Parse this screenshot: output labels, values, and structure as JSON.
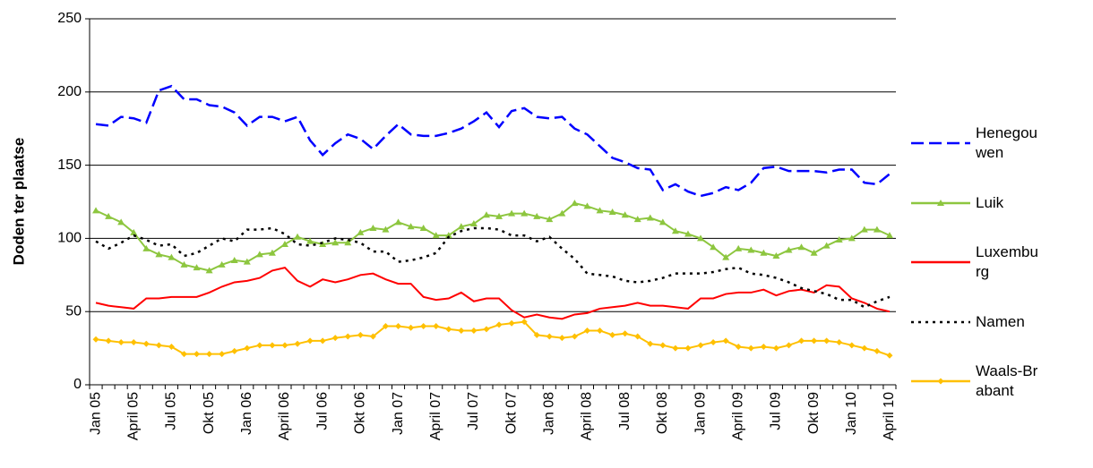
{
  "chart_data": {
    "type": "line",
    "y_label": "Doden ter plaatse",
    "categories": [
      "Jan 05",
      null,
      null,
      "April 05",
      null,
      null,
      "Jul 05",
      null,
      null,
      "Okt 05",
      null,
      null,
      "Jan 06",
      null,
      null,
      "April 06",
      null,
      null,
      "Jul 06",
      null,
      null,
      "Okt 06",
      null,
      null,
      "Jan 07",
      null,
      null,
      "April 07",
      null,
      null,
      "Jul 07",
      null,
      null,
      "Okt 07",
      null,
      null,
      "Jan 08",
      null,
      null,
      "April 08",
      null,
      null,
      "Jul 08",
      null,
      null,
      "Okt 08",
      null,
      null,
      "Jan 09",
      null,
      null,
      "April 09",
      null,
      null,
      "Jul 09",
      null,
      null,
      "Okt 09",
      null,
      null,
      "Jan 10",
      null,
      null,
      "April 10"
    ],
    "series": [
      {
        "name": "Henegouwen",
        "color": "#0000ff",
        "dash": "dashed",
        "marker": "none",
        "values": [
          178,
          177,
          183,
          182,
          179,
          201,
          204,
          195,
          195,
          191,
          190,
          186,
          177,
          183,
          183,
          180,
          183,
          167,
          157,
          165,
          171,
          168,
          161,
          170,
          178,
          171,
          170,
          170,
          172,
          175,
          180,
          186,
          176,
          187,
          189,
          183,
          182,
          183,
          175,
          171,
          163,
          155,
          152,
          148,
          147,
          133,
          137,
          132,
          129,
          131,
          135,
          133,
          138,
          148,
          149,
          146,
          146,
          146,
          145,
          147,
          147,
          138,
          137,
          144
        ]
      },
      {
        "name": "Luik",
        "color": "#8dc63f",
        "dash": "solid",
        "marker": "triangle",
        "values": [
          119,
          115,
          111,
          104,
          93,
          89,
          87,
          82,
          80,
          78,
          82,
          85,
          84,
          89,
          90,
          96,
          101,
          98,
          96,
          97,
          97,
          104,
          107,
          106,
          111,
          108,
          107,
          102,
          102,
          108,
          110,
          116,
          115,
          117,
          117,
          115,
          113,
          117,
          124,
          122,
          119,
          118,
          116,
          113,
          114,
          111,
          105,
          103,
          100,
          94,
          87,
          93,
          92,
          90,
          88,
          92,
          94,
          90,
          95,
          99,
          100,
          106,
          106,
          102
        ]
      },
      {
        "name": "Luxemburg",
        "color": "#ff0000",
        "dash": "solid",
        "marker": "none",
        "values": [
          56,
          54,
          53,
          52,
          59,
          59,
          60,
          60,
          60,
          63,
          67,
          70,
          71,
          73,
          78,
          80,
          71,
          67,
          72,
          70,
          72,
          75,
          76,
          72,
          69,
          69,
          60,
          58,
          59,
          63,
          57,
          59,
          59,
          51,
          46,
          48,
          46,
          45,
          48,
          49,
          52,
          53,
          54,
          56,
          54,
          54,
          53,
          52,
          59,
          59,
          62,
          63,
          63,
          65,
          61,
          64,
          65,
          63,
          68,
          67,
          59,
          56,
          52,
          50
        ]
      },
      {
        "name": "Namen",
        "color": "#000000",
        "dash": "dotted",
        "marker": "none",
        "values": [
          98,
          93,
          97,
          102,
          99,
          95,
          96,
          88,
          90,
          95,
          100,
          98,
          106,
          106,
          107,
          103,
          96,
          95,
          97,
          100,
          99,
          97,
          91,
          91,
          84,
          85,
          87,
          90,
          101,
          105,
          107,
          107,
          106,
          102,
          102,
          98,
          101,
          93,
          86,
          76,
          75,
          74,
          71,
          70,
          71,
          73,
          76,
          76,
          76,
          77,
          79,
          80,
          76,
          75,
          73,
          70,
          66,
          64,
          62,
          58,
          58,
          53,
          57,
          60
        ]
      },
      {
        "name": "Waals-Brabant",
        "color": "#ffc000",
        "dash": "solid",
        "marker": "diamond",
        "values": [
          31,
          30,
          29,
          29,
          28,
          27,
          26,
          21,
          21,
          21,
          21,
          23,
          25,
          27,
          27,
          27,
          28,
          30,
          30,
          32,
          33,
          34,
          33,
          40,
          40,
          39,
          40,
          40,
          38,
          37,
          37,
          38,
          41,
          42,
          43,
          34,
          33,
          32,
          33,
          37,
          37,
          34,
          35,
          33,
          28,
          27,
          25,
          25,
          27,
          29,
          30,
          26,
          25,
          26,
          25,
          27,
          30,
          30,
          30,
          29,
          27,
          25,
          23,
          20
        ]
      }
    ],
    "ylim": [
      0,
      250
    ],
    "yticks": [
      0,
      50,
      100,
      150,
      200,
      250
    ],
    "grid": true,
    "legend": "right"
  }
}
